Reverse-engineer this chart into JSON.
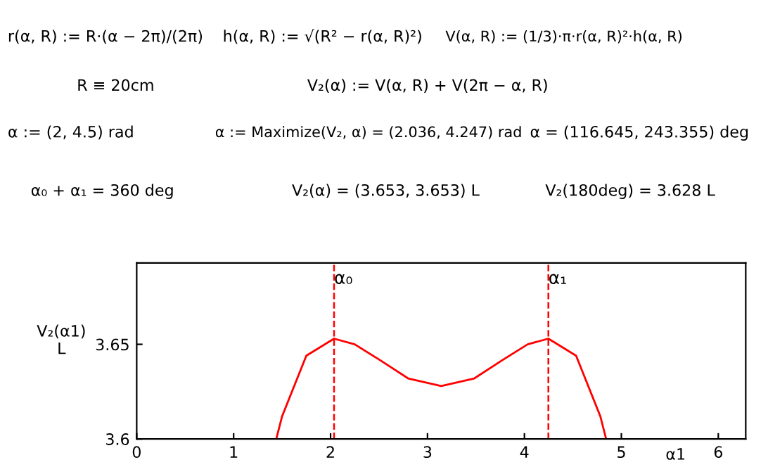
{
  "chart_data": {
    "type": "line",
    "xlabel": "α1",
    "ylabel": "V₂(α1)\nL",
    "x": [
      1.44,
      1.5,
      1.75,
      2.036,
      2.25,
      2.5,
      2.8,
      3.1416,
      3.483,
      3.783,
      4.033,
      4.247,
      4.533,
      4.783,
      4.843
    ],
    "series": [
      {
        "color": "#ff0000",
        "values": [
          3.6,
          3.612,
          3.644,
          3.653,
          3.65,
          3.642,
          3.632,
          3.628,
          3.632,
          3.642,
          3.65,
          3.653,
          3.644,
          3.612,
          3.6
        ]
      }
    ],
    "xlim": [
      0,
      6.283
    ],
    "ylim": [
      3.6,
      3.693
    ],
    "xticks": [
      0,
      1,
      2,
      3,
      4,
      5,
      6
    ],
    "yticks": [
      3.6,
      3.65
    ],
    "grid": false,
    "marker": "none",
    "line_style": "solid",
    "ref_lines": [
      {
        "axis": "x",
        "value": 2.036,
        "label": "α₀",
        "color": "#ff0000",
        "line_style": "dashed"
      },
      {
        "axis": "x",
        "value": 4.247,
        "label": "α₁",
        "color": "#ff0000",
        "line_style": "dashed"
      }
    ],
    "annotations": [
      "r(α, R) := R·(α − 2π)/(2π)",
      "h(α, R) := √(R² − r(α, R)²)",
      "V(α, R) := (1/3)·π·r(α, R)²·h(α, R)",
      "R ≡ 20cm",
      "V₂(α) := V(α, R) + V(2π − α, R)",
      "α := (2, 4.5) rad",
      "α := Maximize(V₂, α) = (2.036, 4.247) rad",
      "α = (116.645, 243.355) deg",
      "α₀ + α₁ = 360 deg",
      "V₂(α) = (3.653, 3.653) L",
      "V₂(180deg) = 3.628 L"
    ]
  }
}
